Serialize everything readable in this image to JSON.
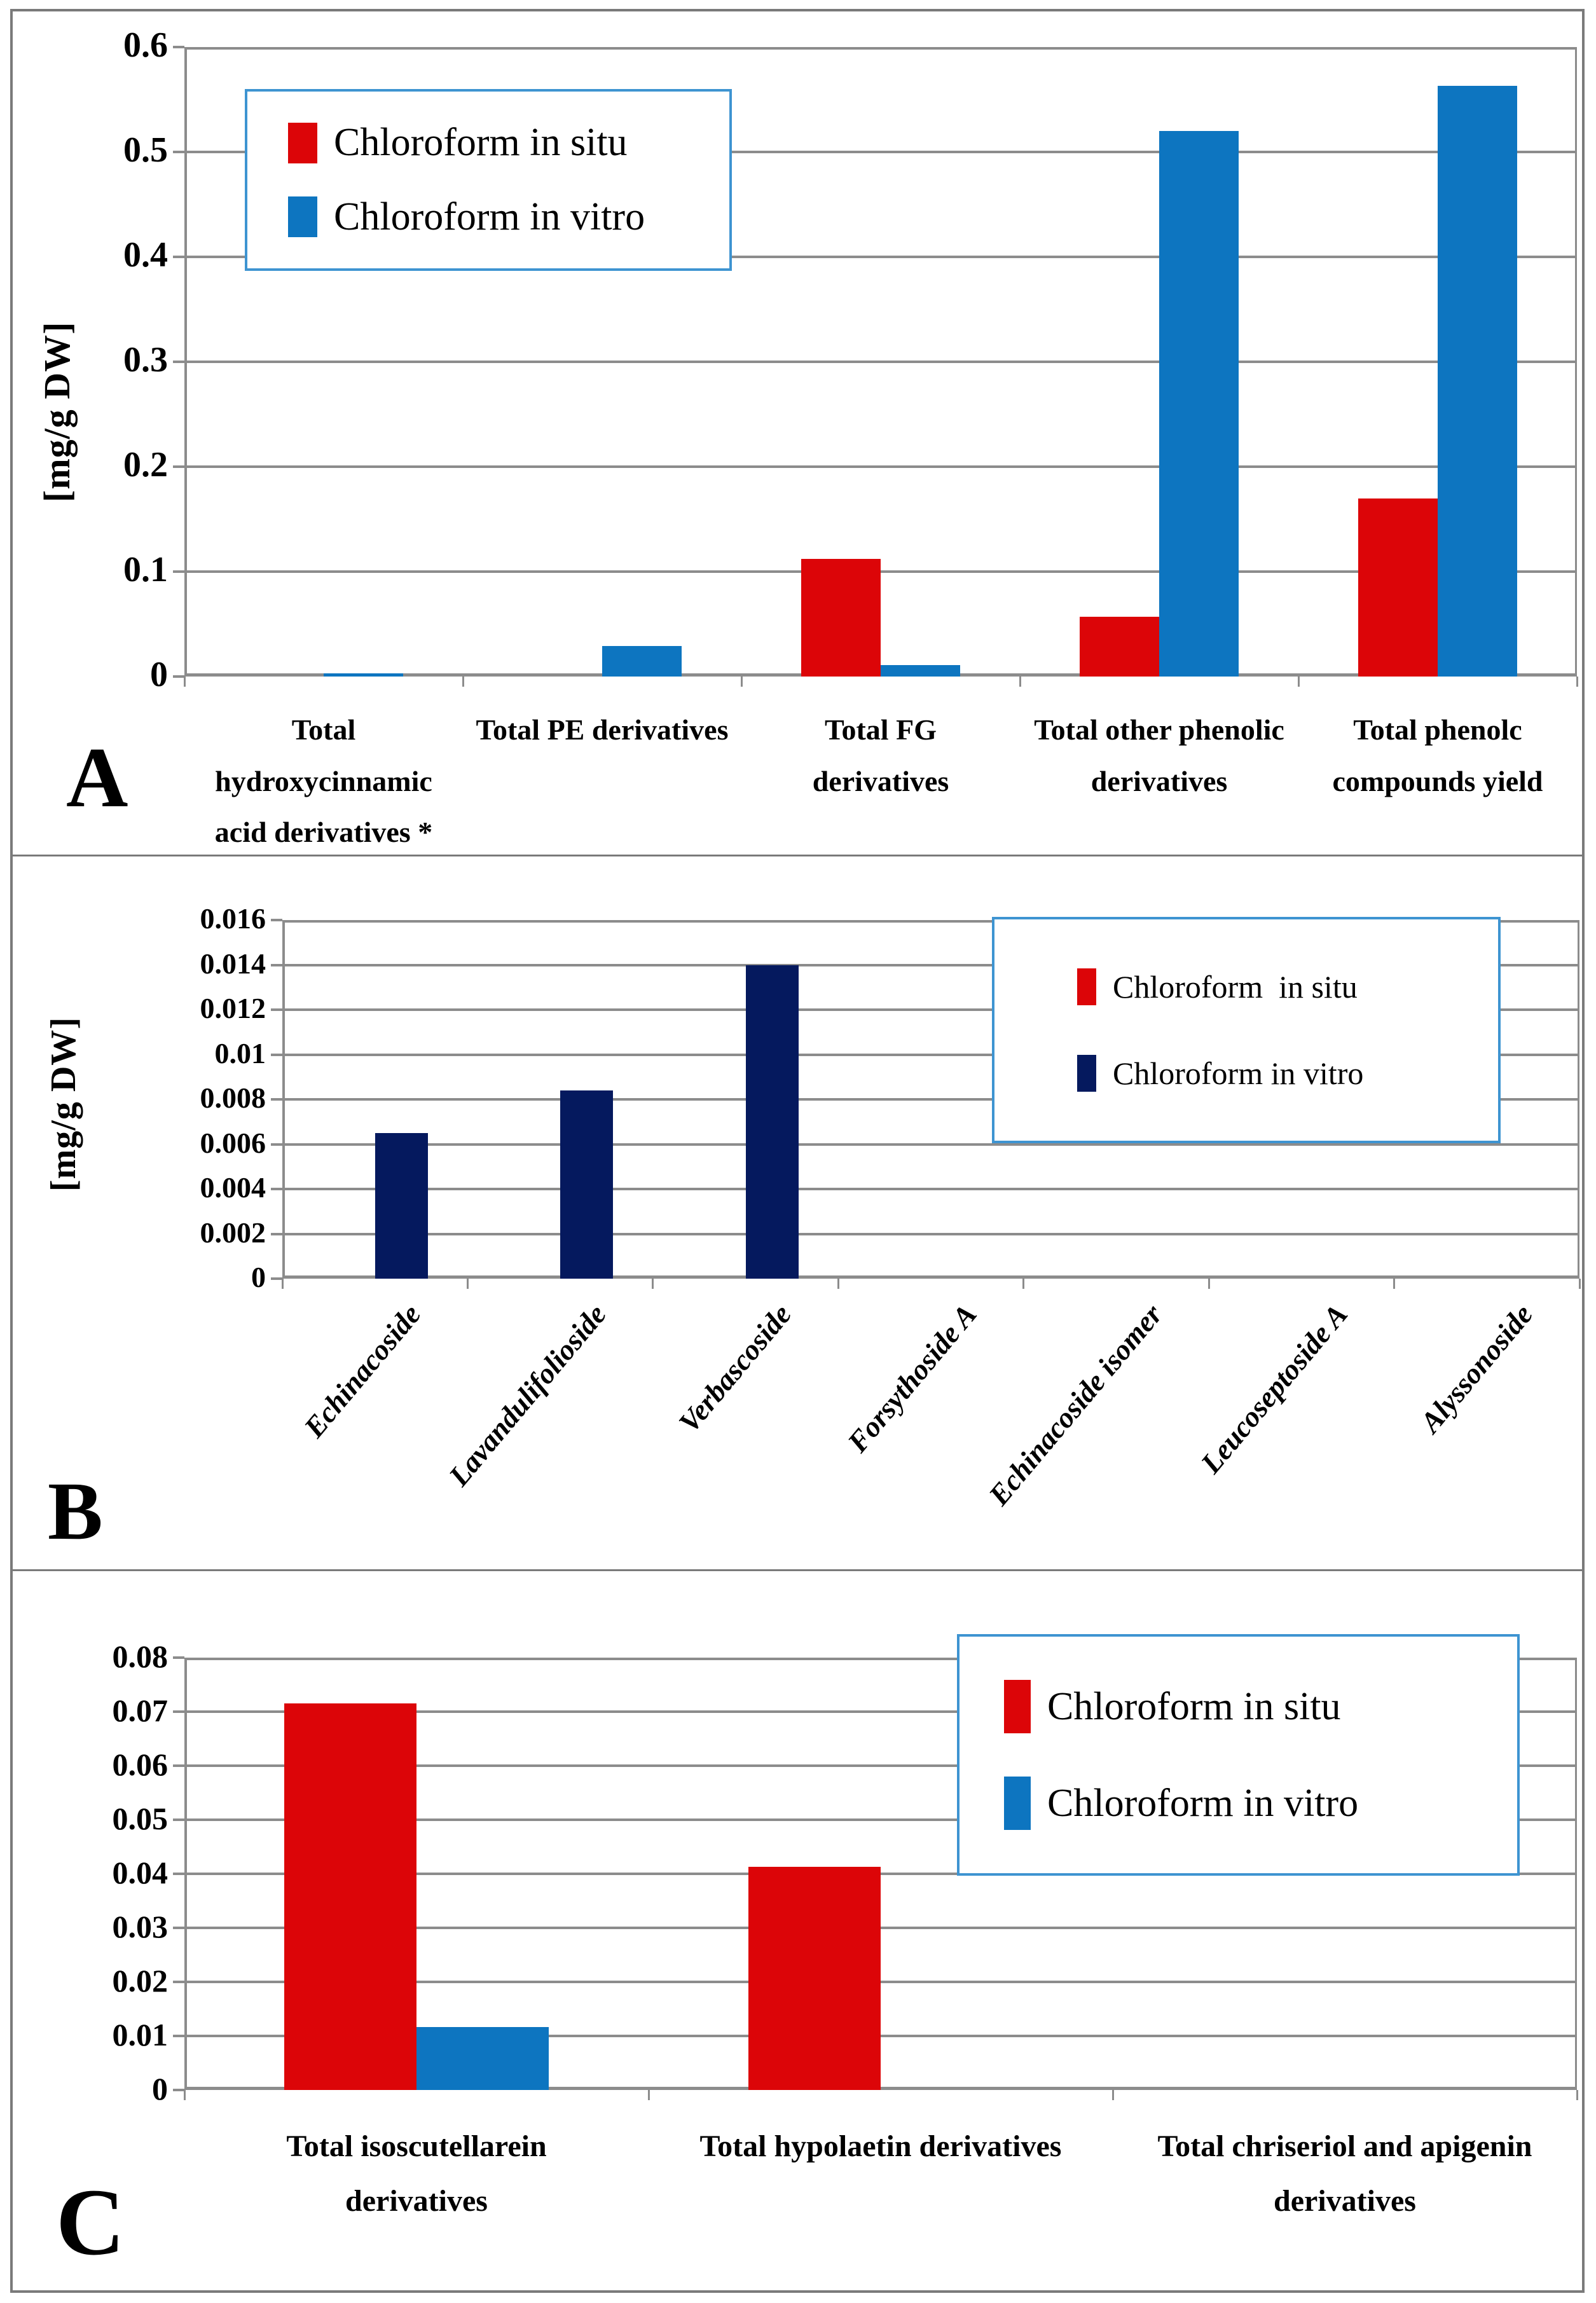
{
  "colors": {
    "in_situ_red": "#dc0508",
    "in_vitro_blue": "#0d75c0",
    "in_vitro_navy": "#05195e",
    "legend_border": "#3e94d1",
    "gridline_gray": "#8c8c8c",
    "frame_gray": "#7a7a7a"
  },
  "chart_data": [
    {
      "type": "bar",
      "panel_label": "A",
      "ylabel": "[mg/g DW]",
      "ylim": [
        0,
        0.6
      ],
      "ytick_labels": [
        "0.6",
        "0.5",
        "0.4",
        "0.3",
        "0.2",
        "0.1",
        "0"
      ],
      "grid": true,
      "legend_position": "upper-left",
      "categories": [
        "Total hydroxycinnamic acid derivatives *",
        "Total PE derivatives",
        "Total FG derivatives",
        "Total other phenolic derivatives",
        "Total phenolc compounds yield"
      ],
      "series": [
        {
          "name": "Chloroform in situ",
          "color": "#dc0508",
          "values": [
            0,
            0,
            0.112,
            0.057,
            0.17
          ]
        },
        {
          "name": "Chloroform in vitro",
          "color": "#0d75c0",
          "values": [
            0.003,
            0.029,
            0.011,
            0.52,
            0.563
          ]
        }
      ]
    },
    {
      "type": "bar",
      "panel_label": "B",
      "ylabel": "[mg/g DW]",
      "ylim": [
        0,
        0.016
      ],
      "ytick_labels": [
        "0.016",
        "0.014",
        "0.012",
        "0.01",
        "0.008",
        "0.006",
        "0.004",
        "0.002",
        "0"
      ],
      "grid": true,
      "legend_position": "upper-right",
      "categories": [
        "Echinacoside",
        "Lavandulifolioside",
        "Verbascoside",
        "Forsythoside A",
        "Echinacoside isomer",
        "Leucoseptoside A",
        "Alyssonoside"
      ],
      "series": [
        {
          "name": "Chloroform  in situ",
          "color": "#dc0508",
          "values": [
            0,
            0,
            0,
            0,
            0,
            0,
            0
          ]
        },
        {
          "name": "Chloroform in vitro",
          "color": "#05195e",
          "values": [
            0.0065,
            0.0084,
            0.014,
            0,
            0,
            0,
            0
          ]
        }
      ]
    },
    {
      "type": "bar",
      "panel_label": "C",
      "ylabel": "",
      "ylim": [
        0,
        0.08
      ],
      "ytick_labels": [
        "0.08",
        "0.07",
        "0.06",
        "0.05",
        "0.04",
        "0.03",
        "0.02",
        "0.01",
        "0"
      ],
      "grid": true,
      "legend_position": "upper-right",
      "categories": [
        "Total isoscutellarein derivatives",
        "Total hypolaetin derivatives",
        "Total chriseriol and apigenin derivatives"
      ],
      "series": [
        {
          "name": "Chloroform in situ",
          "color": "#dc0508",
          "values": [
            0.0715,
            0.0413,
            0
          ]
        },
        {
          "name": "Chloroform in vitro",
          "color": "#0d75c0",
          "values": [
            0.0116,
            0,
            0
          ]
        }
      ]
    }
  ]
}
